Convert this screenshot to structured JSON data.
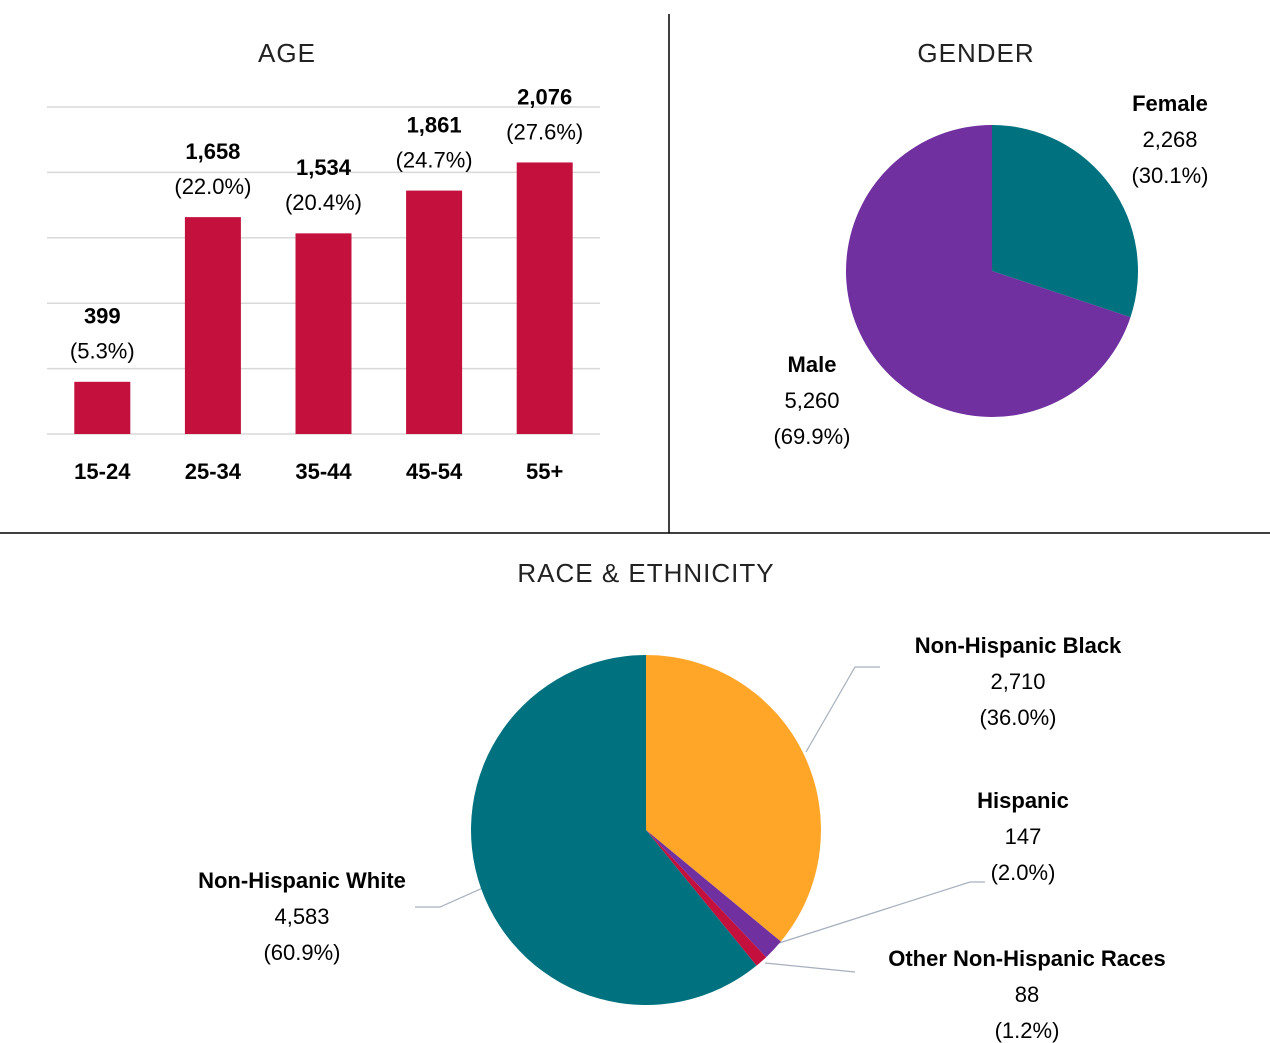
{
  "chart_data": [
    {
      "type": "bar",
      "title": "AGE",
      "categories": [
        "15-24",
        "25-34",
        "35-44",
        "45-54",
        "55+"
      ],
      "values": [
        399,
        1658,
        1534,
        1861,
        2076
      ],
      "value_labels": [
        "399",
        "1,658",
        "1,534",
        "1,861",
        "2,076"
      ],
      "percents": [
        5.3,
        22.0,
        20.4,
        24.7,
        27.6
      ],
      "percent_labels": [
        "(5.3%)",
        "(22.0%)",
        "(20.4%)",
        "(24.7%)",
        "(27.6%)"
      ],
      "color": "#c4103c",
      "ylim": [
        0,
        2500
      ],
      "yticks": [
        0,
        500,
        1000,
        1500,
        2000,
        2500
      ],
      "grid": true
    },
    {
      "type": "pie",
      "title": "GENDER",
      "categories": [
        "Female",
        "Male"
      ],
      "values": [
        2268,
        5260
      ],
      "value_labels": [
        "2,268",
        "5,260"
      ],
      "percents": [
        30.1,
        69.9
      ],
      "percent_labels": [
        "(30.1%)",
        "(69.9%)"
      ],
      "colors": [
        "#00727f",
        "#7030a0"
      ]
    },
    {
      "type": "pie",
      "title": "RACE & ETHNICITY",
      "categories": [
        "Non-Hispanic Black",
        "Hispanic",
        "Other Non-Hispanic Races",
        "Non-Hispanic White"
      ],
      "values": [
        2710,
        147,
        88,
        4583
      ],
      "value_labels": [
        "2,710",
        "147",
        "88",
        "4,583"
      ],
      "percents": [
        36.0,
        2.0,
        1.2,
        60.9
      ],
      "percent_labels": [
        "(36.0%)",
        "(2.0%)",
        "(1.2%)",
        "(60.9%)"
      ],
      "colors": [
        "#ffa629",
        "#7030a0",
        "#c4103c",
        "#00727f"
      ]
    }
  ]
}
